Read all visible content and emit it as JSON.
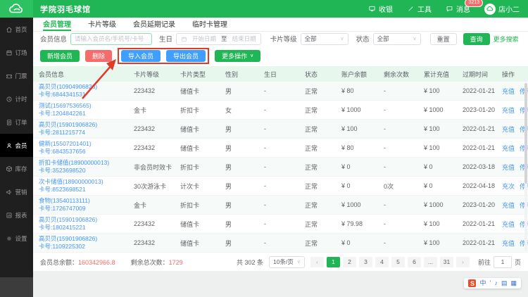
{
  "colors": {
    "accent_green": "#21b655",
    "button_blue": "#409eff",
    "danger_red": "#f56c6c",
    "link_blue": "#4596f7",
    "annotation_red": "#e03a2a",
    "sidebar_dark": "#1f1f1f",
    "table_header_bg": "#e8f7ee"
  },
  "header": {
    "title": "学院羽毛球馆",
    "cashier": "收银",
    "tools": "工具",
    "messages": "消息",
    "badge": "3213",
    "user": "店小二"
  },
  "sidebar": {
    "items": [
      {
        "label": "首页",
        "icon": "home-icon",
        "active": false
      },
      {
        "label": "订场",
        "icon": "calendar-icon",
        "active": false
      },
      {
        "label": "门票",
        "icon": "ticket-icon",
        "active": false
      },
      {
        "label": "计时",
        "icon": "clock-icon",
        "active": false
      },
      {
        "label": "订单",
        "icon": "order-icon",
        "active": false
      },
      {
        "label": "会员",
        "icon": "member-icon",
        "active": true
      },
      {
        "label": "库存",
        "icon": "inventory-icon",
        "active": false
      },
      {
        "label": "营销",
        "icon": "marketing-icon",
        "active": false
      },
      {
        "label": "报表",
        "icon": "report-icon",
        "active": false
      },
      {
        "label": "设置",
        "icon": "settings-icon",
        "active": false
      }
    ]
  },
  "tabs": [
    {
      "label": "会员管理",
      "active": true
    },
    {
      "label": "卡片等级",
      "active": false
    },
    {
      "label": "会员延期记录",
      "active": false
    },
    {
      "label": "临时卡管理",
      "active": false
    }
  ],
  "filters": {
    "member_label": "会员信息",
    "member_placeholder": "请输入会员名/手机号/卡号",
    "birthday_label": "生日",
    "start_placeholder": "开始日期",
    "range_sep": "至",
    "end_placeholder": "结束日期",
    "card_level_label": "卡片等级",
    "card_level_value": "全部",
    "status_label": "状态",
    "status_value": "全部",
    "reset": "重置",
    "search": "查询",
    "more_search": "更多搜索"
  },
  "toolbar": {
    "add": "新增会员",
    "delete": "删除",
    "import": "导入会员",
    "export": "导出会员",
    "more": "更多操作"
  },
  "table": {
    "columns": [
      "会员信息",
      "卡片等级",
      "卡片类型",
      "性别",
      "生日",
      "状态",
      "账户余额",
      "剩余次数",
      "累计充值",
      "过期时间",
      "操作"
    ],
    "rows": [
      {
        "name": "高贝贝(10904906826)",
        "card_no": "卡号:6844341531",
        "level": "223432",
        "type": "储值卡",
        "gender": "男",
        "birthday": "-",
        "status": "正常",
        "balance": "¥ 80",
        "times": "-",
        "recharge": "¥ 100",
        "expire": "2022-01-21",
        "ops": [
          "充值",
          "停用"
        ]
      },
      {
        "name": "测试(15697536565)",
        "card_no": "卡号:1204842261",
        "level": "金卡",
        "type": "折扣卡",
        "gender": "女",
        "birthday": "-",
        "status": "正常",
        "balance": "¥ 1000",
        "times": "-",
        "recharge": "¥ 1000",
        "expire": "2023-01-20",
        "ops": [
          "充值",
          "停用"
        ]
      },
      {
        "name": "高贝贝(15901906826)",
        "card_no": "卡号:2811215774",
        "level": "223432",
        "type": "储值卡",
        "gender": "男",
        "birthday": "-",
        "status": "正常",
        "balance": "¥ 100",
        "times": "-",
        "recharge": "¥ 100",
        "expire": "2022-01-21",
        "ops": [
          "充值",
          "停用"
        ]
      },
      {
        "name": "健新(15507201401)",
        "card_no": "卡号:6843537656",
        "level": "223432",
        "type": "储值卡",
        "gender": "男",
        "birthday": "-",
        "status": "正常",
        "balance": "¥ 80",
        "times": "-",
        "recharge": "¥ 100",
        "expire": "2022-01-21",
        "ops": [
          "充值",
          "停用"
        ]
      },
      {
        "name": "折扣卡储值(18900000013)",
        "card_no": "卡号:3523698520",
        "level": "非会员时效卡",
        "type": "折扣卡",
        "gender": "男",
        "birthday": "-",
        "status": "正常",
        "balance": "¥ 0",
        "times": "-",
        "recharge": "¥ 0",
        "expire": "2022-03-18",
        "ops": [
          "充值",
          "停用"
        ]
      },
      {
        "name": "次卡储值(18900000013)",
        "card_no": "卡号:8523698521",
        "level": "30次游泳卡",
        "type": "计次卡",
        "gender": "男",
        "birthday": "-",
        "status": "正常",
        "balance": "¥ 0",
        "times": "0次",
        "recharge": "¥ 0",
        "expire": "2022-04-18",
        "ops": [
          "充次",
          "停用"
        ]
      },
      {
        "name": "食物(13540113111)",
        "card_no": "卡号:1726747009",
        "level": "金卡",
        "type": "折扣卡",
        "gender": "男",
        "birthday": "-",
        "status": "正常",
        "balance": "¥ 1000",
        "times": "-",
        "recharge": "¥ 1000",
        "expire": "2023-01-20",
        "ops": [
          "充值",
          "停用"
        ]
      },
      {
        "name": "高贝贝(15901906826)",
        "card_no": "卡号:1802415221",
        "level": "223432",
        "type": "储值卡",
        "gender": "男",
        "birthday": "-",
        "status": "正常",
        "balance": "¥ 79.98",
        "times": "-",
        "recharge": "¥ 100",
        "expire": "2022-01-21",
        "ops": [
          "充值",
          "停用"
        ]
      },
      {
        "name": "高贝贝(15901906826)",
        "card_no": "卡号:1109225302",
        "level": "223432",
        "type": "储值卡",
        "gender": "男",
        "birthday": "-",
        "status": "正常",
        "balance": "¥ 0",
        "times": "-",
        "recharge": "¥ 100",
        "expire": "2022-01-21",
        "ops": [
          "充值",
          "停用"
        ]
      }
    ]
  },
  "summary": {
    "balance_label": "会员总余额：",
    "balance_value": "160342966.8",
    "times_label": "剩余总次数：",
    "times_value": "1729"
  },
  "pagination": {
    "total": "共 302 条",
    "page_size": "10条/页",
    "pages": [
      "1",
      "2",
      "3",
      "4",
      "5",
      "6",
      "...",
      "31"
    ],
    "active": "1",
    "goto_label": "前往",
    "goto_value": "1",
    "goto_suffix": "页"
  },
  "ime": {
    "logo": "S",
    "keys": [
      {
        "name": "ime-mode-zh-icon",
        "glyph": "中"
      },
      {
        "name": "ime-punct-icon",
        "glyph": "’"
      },
      {
        "name": "ime-mic-icon",
        "glyph": "♪"
      },
      {
        "name": "ime-keyboard-icon",
        "glyph": "▤"
      },
      {
        "name": "ime-toolbox-icon",
        "glyph": "▦"
      }
    ]
  }
}
